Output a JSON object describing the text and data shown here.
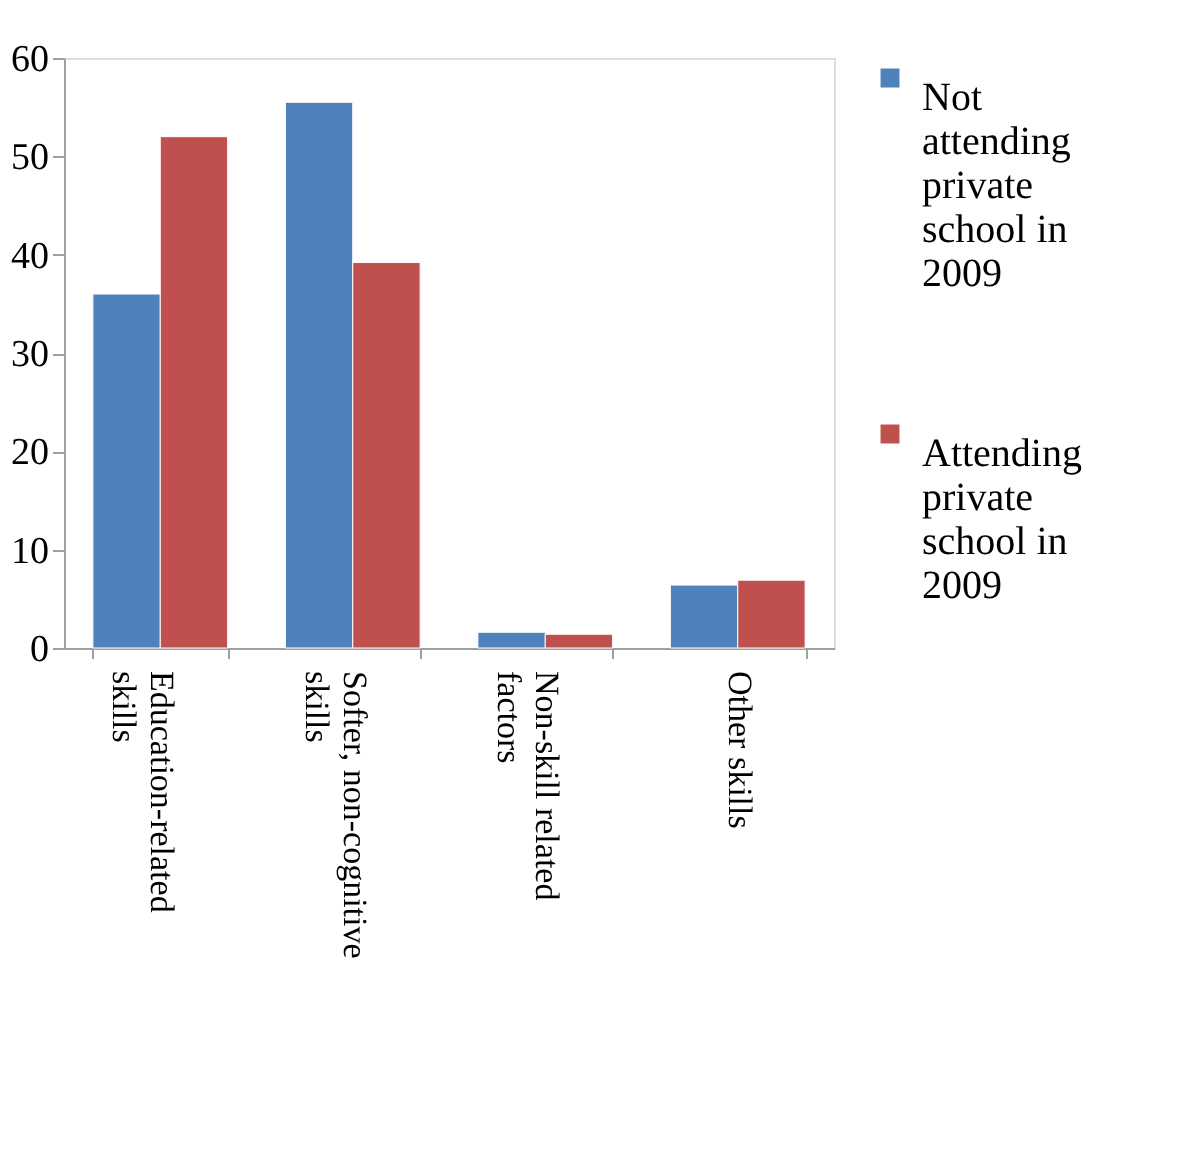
{
  "chart_data": {
    "type": "bar",
    "categories": [
      "Education-related skills",
      "Softer, non-cognitive skills",
      "Non-skill related factors",
      "Other skills"
    ],
    "series": [
      {
        "name": "Not attending private school in 2009",
        "color": "#4f81bd",
        "values": [
          36.0,
          55.5,
          1.6,
          6.4
        ]
      },
      {
        "name": "Attending private school in 2009",
        "color": "#c0504d",
        "values": [
          52.0,
          39.2,
          1.4,
          6.9
        ]
      }
    ],
    "ylim": [
      0,
      60
    ],
    "yticks": [
      0,
      10,
      20,
      30,
      40,
      50,
      60
    ],
    "grid": false,
    "legend": "right"
  }
}
